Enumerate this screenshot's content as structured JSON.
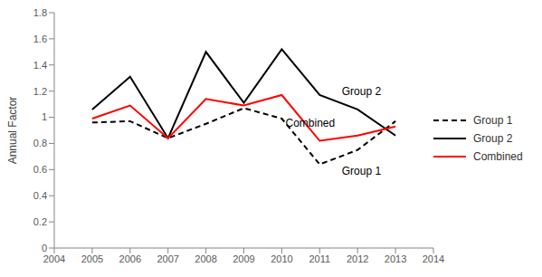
{
  "chart_data": {
    "type": "line",
    "y_label": "Annual Factor",
    "x": [
      2005,
      2006,
      2007,
      2008,
      2009,
      2010,
      2011,
      2012,
      2013
    ],
    "series": [
      {
        "name": "Group 1",
        "color": "#000000",
        "line_style": "dashed",
        "values": [
          0.96,
          0.97,
          0.84,
          0.95,
          1.07,
          0.99,
          0.64,
          0.75,
          0.97
        ]
      },
      {
        "name": "Group 2",
        "color": "#000000",
        "line_style": "solid",
        "values": [
          1.06,
          1.31,
          0.84,
          1.5,
          1.11,
          1.52,
          1.17,
          1.06,
          0.86
        ]
      },
      {
        "name": "Combined",
        "color": "#ff0000",
        "line_style": "solid",
        "values": [
          0.99,
          1.09,
          0.84,
          1.14,
          1.09,
          1.17,
          0.82,
          0.86,
          0.93
        ]
      }
    ],
    "xlim": [
      2004,
      2014
    ],
    "xticks": [
      2004,
      2005,
      2006,
      2007,
      2008,
      2009,
      2010,
      2011,
      2012,
      2013,
      2014
    ],
    "ylim": [
      0,
      1.8
    ],
    "yticks": [
      0,
      0.2,
      0.4,
      0.6,
      0.8,
      1,
      1.2,
      1.4,
      1.6,
      1.8
    ],
    "grid": false,
    "legend": "right",
    "marker": "none",
    "annotations": [
      {
        "text": "Group 2",
        "x": 2012.1,
        "y": 1.2
      },
      {
        "text": "Combined",
        "x": 2010.75,
        "y": 0.96
      },
      {
        "text": "Group 1",
        "x": 2012.1,
        "y": 0.59
      }
    ]
  }
}
